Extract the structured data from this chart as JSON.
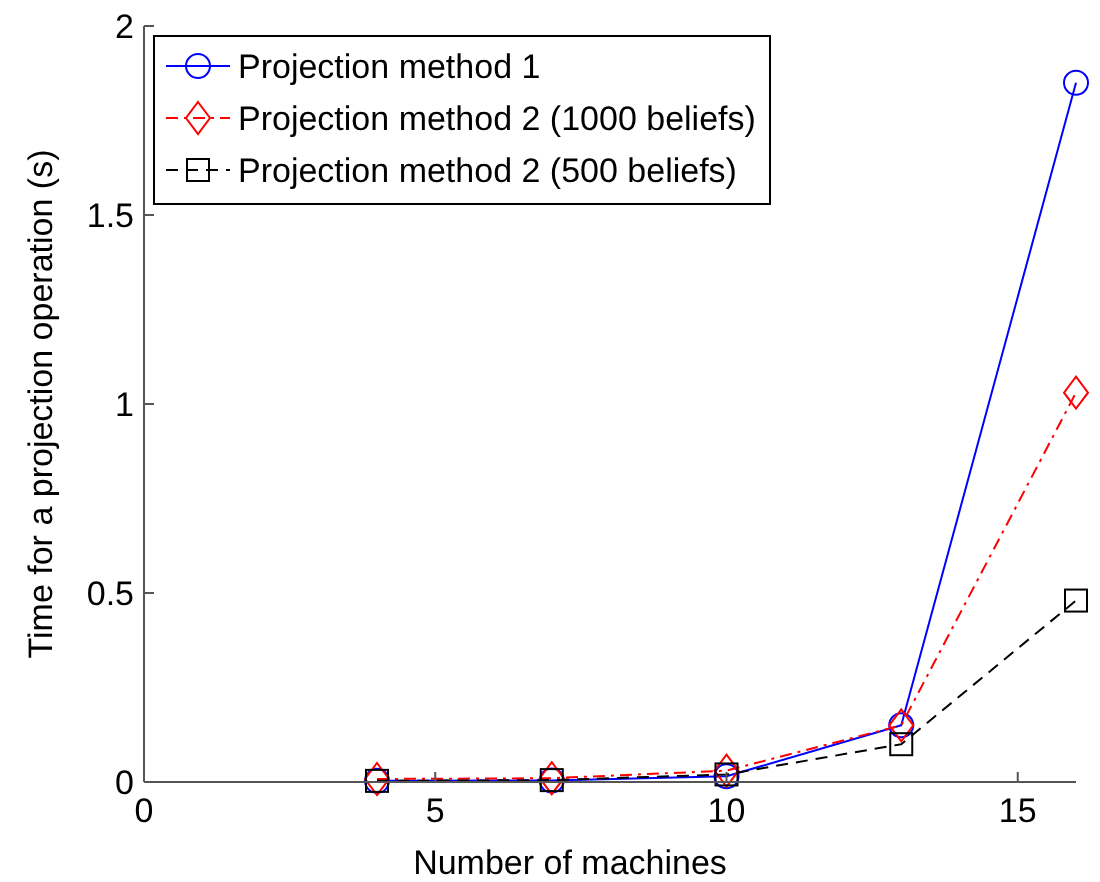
{
  "chart_data": {
    "type": "line",
    "xlabel": "Number of machines",
    "ylabel": "Time for a projection operation (s)",
    "x": [
      4,
      7,
      10,
      13,
      16
    ],
    "series": [
      {
        "name": "Projection method 1",
        "color": "#0000ff",
        "values": [
          0.003,
          0.004,
          0.015,
          0.15,
          1.85
        ],
        "marker": "circle",
        "line_style": "solid"
      },
      {
        "name": "Projection method 2 (1000 beliefs)",
        "color": "#ff0000",
        "values": [
          0.008,
          0.01,
          0.03,
          0.15,
          1.03
        ],
        "marker": "diamond",
        "line_style": "dashdot"
      },
      {
        "name": "Projection method 2 (500 beliefs)",
        "color": "#000000",
        "values": [
          0.003,
          0.005,
          0.02,
          0.1,
          0.48
        ],
        "marker": "square",
        "line_style": "dashed"
      }
    ],
    "xlim": [
      0,
      16
    ],
    "xticks": [
      0,
      5,
      10,
      15
    ],
    "ylim": [
      0,
      2
    ],
    "yticks": [
      0,
      0.5,
      1,
      1.5,
      2
    ],
    "grid": false,
    "legend": "top left"
  }
}
